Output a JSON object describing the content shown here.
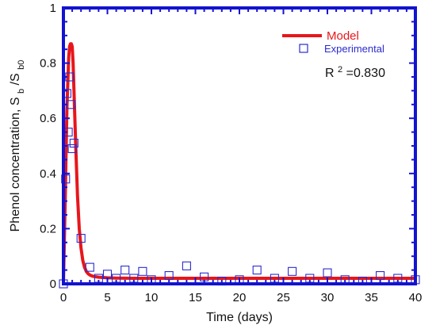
{
  "chart_data": {
    "type": "line",
    "xlabel": "Time (days)",
    "ylabel": {
      "main": "Phenol concentration, S",
      "sub1": "b",
      "mid": "/S",
      "sub2": "b0"
    },
    "xlim": [
      0,
      40
    ],
    "ylim": [
      0,
      1
    ],
    "xticks": [
      0,
      5,
      10,
      15,
      20,
      25,
      30,
      35,
      40
    ],
    "yticks": [
      0,
      0.2,
      0.4,
      0.6,
      0.8,
      1
    ],
    "ytick_labels": [
      "0",
      "0.2",
      "0.4",
      "0.6",
      "0.8",
      "1"
    ],
    "grid": false,
    "legend_position": "top-right",
    "annotation": {
      "prefix": "R",
      "superscript": "2",
      "suffix": "=0.830"
    },
    "series": [
      {
        "name": "Model",
        "kind": "line",
        "color": "#e8161b",
        "x": [
          0,
          0.2,
          0.4,
          0.6,
          0.7,
          0.8,
          0.9,
          1.0,
          1.1,
          1.2,
          1.4,
          1.6,
          1.8,
          2.0,
          2.2,
          2.4,
          2.6,
          2.8,
          3.0,
          3.3,
          3.6,
          4.0,
          5,
          6,
          8,
          10,
          15,
          20,
          25,
          30,
          35,
          40
        ],
        "y": [
          0.0,
          0.3,
          0.64,
          0.82,
          0.86,
          0.87,
          0.87,
          0.86,
          0.8,
          0.7,
          0.5,
          0.32,
          0.2,
          0.13,
          0.085,
          0.06,
          0.045,
          0.037,
          0.032,
          0.028,
          0.026,
          0.024,
          0.022,
          0.021,
          0.02,
          0.02,
          0.02,
          0.02,
          0.02,
          0.02,
          0.02,
          0.02
        ]
      },
      {
        "name": "Experimental",
        "kind": "scatter",
        "color": "#2b2bd0",
        "x": [
          0,
          0.25,
          0.4,
          0.55,
          0.7,
          0.85,
          1.0,
          1.2,
          2.0,
          3.0,
          4.0,
          5.0,
          6.0,
          7.0,
          8.0,
          9.0,
          10.0,
          12.0,
          14.0,
          16.0,
          18.0,
          20.0,
          22.0,
          24.0,
          26.0,
          28.0,
          30.0,
          32.0,
          34.0,
          36.0,
          38.0,
          40.0
        ],
        "y": [
          0.0,
          0.38,
          0.69,
          0.55,
          0.75,
          0.65,
          0.49,
          0.51,
          0.165,
          0.06,
          0.02,
          0.035,
          0.02,
          0.05,
          0.02,
          0.045,
          0.015,
          0.03,
          0.065,
          0.025,
          0.01,
          0.015,
          0.05,
          0.02,
          0.045,
          0.02,
          0.04,
          0.015,
          0.01,
          0.03,
          0.02,
          0.015
        ]
      }
    ]
  }
}
